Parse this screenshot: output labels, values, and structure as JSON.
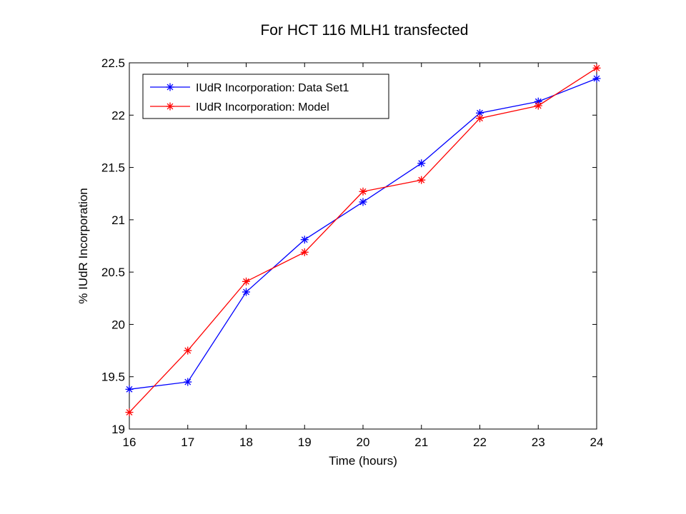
{
  "chart_data": {
    "type": "line",
    "title": "For HCT 116 MLH1 transfected",
    "xlabel": "Time (hours)",
    "ylabel": "% IUdR Incorporation",
    "x": [
      16,
      17,
      18,
      19,
      20,
      21,
      22,
      23,
      24
    ],
    "xlim": [
      16,
      24
    ],
    "ylim": [
      19,
      22.5
    ],
    "xticks": [
      "16",
      "17",
      "18",
      "19",
      "20",
      "21",
      "22",
      "23",
      "24"
    ],
    "yticks": [
      "19",
      "19.5",
      "20",
      "20.5",
      "21",
      "21.5",
      "22",
      "22.5"
    ],
    "grid": false,
    "legend_position": "top-left",
    "series": [
      {
        "name": "IUdR Incorporation: Data Set1",
        "color": "#0000ff",
        "marker": "asterisk",
        "values": [
          19.38,
          19.45,
          20.31,
          20.81,
          21.17,
          21.54,
          22.02,
          22.13,
          22.35
        ]
      },
      {
        "name": "IUdR Incorporation: Model",
        "color": "#ff0000",
        "marker": "asterisk",
        "values": [
          19.16,
          19.75,
          20.41,
          20.69,
          21.27,
          21.38,
          21.97,
          22.09,
          22.45
        ]
      }
    ]
  }
}
